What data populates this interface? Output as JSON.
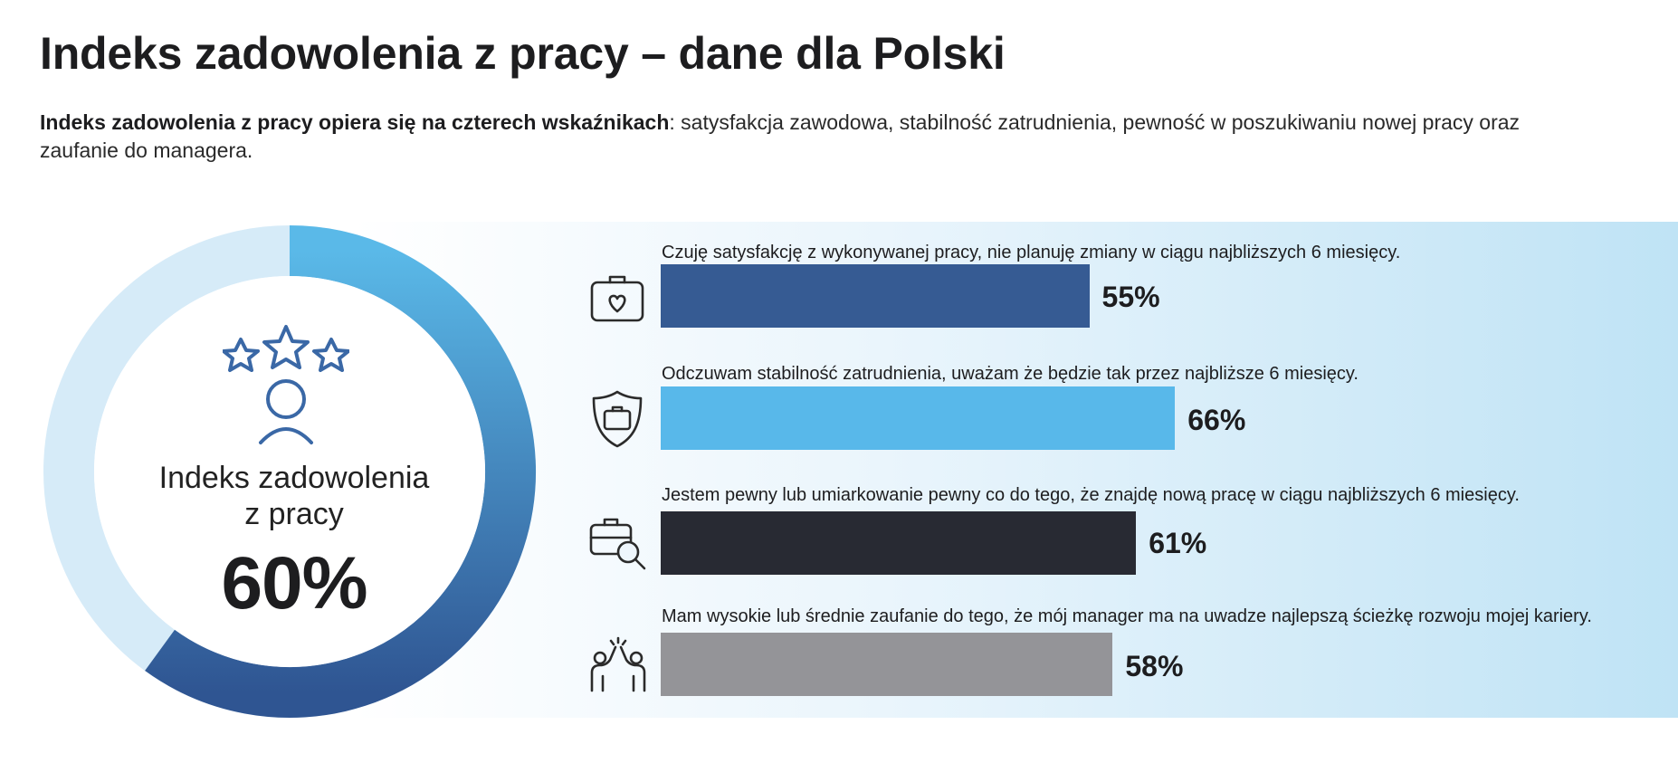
{
  "header": {
    "title": "Indeks zadowolenia z pracy – dane dla Polski",
    "intro_bold": "Indeks zadowolenia z pracy opiera się na czterech wskaźnikach",
    "intro_rest": ": satysfakcja zawodowa, stabilność zatrudnienia, pewność w poszukiwaniu nowej pracy oraz zaufanie do managera."
  },
  "summary": {
    "label_line1": "Indeks zadowolenia",
    "label_line2": "z pracy",
    "value": 60,
    "value_label": "60%",
    "icon": "stars-person-icon",
    "ring_colors": {
      "fill_start": "#5ab9e8",
      "fill_end": "#2f5592",
      "track": "#d6ebf8"
    }
  },
  "chart_data": [
    {
      "type": "pie",
      "variant": "donut",
      "values": [
        60,
        40
      ],
      "center_label": "Indeks zadowolenia z pracy",
      "center_value": "60%"
    },
    {
      "type": "bar",
      "orientation": "horizontal",
      "xlim": [
        0,
        100
      ],
      "categories": [
        "Czuję satysfakcję z wykonywanej pracy, nie planuję zmiany w ciągu najbliższych 6 miesięcy.",
        "Odczuwam stabilność zatrudnienia, uważam że będzie tak przez najbliższe 6 miesięcy.",
        "Jestem pewny lub umiarkowanie pewny co do tego, że znajdę nową pracę w ciągu najbliższych 6 miesięcy.",
        "Mam wysokie lub średnie zaufanie do tego, że mój manager ma na uwadze najlepszą ścieżkę rozwoju mojej kariery."
      ],
      "values": [
        55,
        66,
        61,
        58
      ],
      "value_labels": [
        "55%",
        "66%",
        "61%",
        "58%"
      ],
      "colors": [
        "#365b93",
        "#58b8ea",
        "#282a33",
        "#949498"
      ],
      "icons": [
        "briefcase-heart-icon",
        "shield-briefcase-icon",
        "briefcase-search-icon",
        "high-five-icon"
      ]
    }
  ]
}
